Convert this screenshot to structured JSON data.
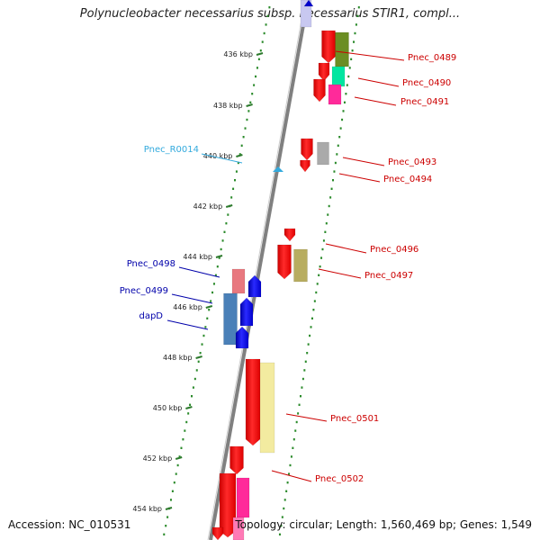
{
  "title": "Polynucleobacter necessarius subsp. necessarius STIR1, compl...",
  "accession": "Accession: NC_010531",
  "topology": "Topology: circular; Length: 1,560,469 bp; Genes: 1,549",
  "colors": {
    "backbone": "#808080",
    "dots": "#2a8a2a",
    "forward": "#ff0000",
    "reverse": "#0000ee",
    "rna": "#33aadd"
  },
  "ticks": [
    "436 kbp",
    "438 kbp",
    "440 kbp",
    "442 kbp",
    "444 kbp",
    "446 kbp",
    "448 kbp",
    "450 kbp",
    "452 kbp",
    "454 kbp"
  ],
  "labels": [
    {
      "text": "Pnec_0489",
      "color": "#cc0000"
    },
    {
      "text": "Pnec_0490",
      "color": "#cc0000"
    },
    {
      "text": "Pnec_0491",
      "color": "#cc0000"
    },
    {
      "text": "Pnec_0493",
      "color": "#cc0000"
    },
    {
      "text": "Pnec_0494",
      "color": "#cc0000"
    },
    {
      "text": "Pnec_0496",
      "color": "#cc0000"
    },
    {
      "text": "Pnec_0497",
      "color": "#cc0000"
    },
    {
      "text": "Pnec_0501",
      "color": "#cc0000"
    },
    {
      "text": "Pnec_0502",
      "color": "#cc0000"
    },
    {
      "text": "Pnec_R0014",
      "color": "#33aadd"
    },
    {
      "text": "Pnec_0498",
      "color": "#0000aa"
    },
    {
      "text": "Pnec_0499",
      "color": "#0000aa"
    },
    {
      "text": "dapD",
      "color": "#0000aa"
    }
  ]
}
